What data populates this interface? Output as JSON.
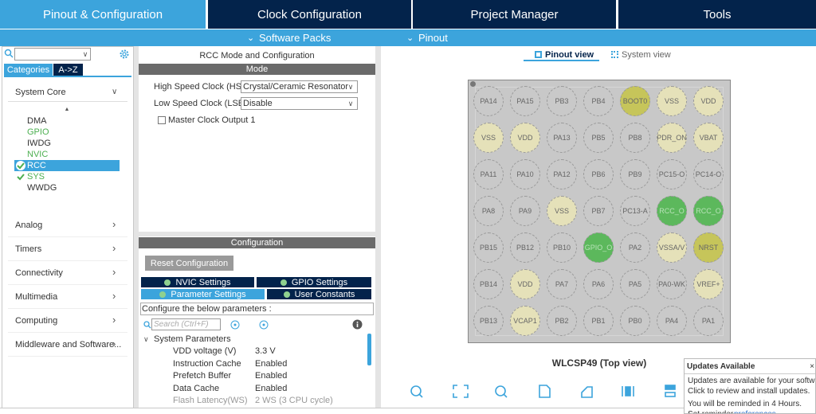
{
  "tabs": [
    "Pinout & Configuration",
    "Clock Configuration",
    "Project Manager",
    "Tools"
  ],
  "subtabs": [
    "Software Packs",
    "Pinout"
  ],
  "sidebar": {
    "tabs": [
      "Categories",
      "A->Z"
    ],
    "group": "System Core",
    "items": [
      {
        "label": "DMA",
        "color": "#333333"
      },
      {
        "label": "GPIO",
        "color": "#4caf50"
      },
      {
        "label": "IWDG",
        "color": "#333333"
      },
      {
        "label": "NVIC",
        "color": "#4caf50"
      },
      {
        "label": "RCC",
        "color": "#ffffff"
      },
      {
        "label": "SYS",
        "color": "#4caf50"
      },
      {
        "label": "WWDG",
        "color": "#333333"
      }
    ],
    "categories": [
      "Analog",
      "Timers",
      "Connectivity",
      "Multimedia",
      "Computing",
      "Middleware and Software..."
    ]
  },
  "mode_panel": {
    "title": "RCC Mode and Configuration",
    "header": "Mode",
    "fields": [
      {
        "label": "High Speed Clock (HSE)",
        "value": "Crystal/Ceramic Resonator"
      },
      {
        "label": "Low Speed Clock (LSE)",
        "value": "Disable"
      }
    ],
    "checkbox": "Master Clock Output 1"
  },
  "config_panel": {
    "header": "Configuration",
    "reset_button": "Reset Configuration",
    "tabs": [
      "NVIC Settings",
      "GPIO Settings",
      "Parameter Settings",
      "User Constants"
    ],
    "hint": "Configure the below parameters :",
    "search_placeholder": "Search (Ctrl+F)",
    "group": "System Parameters",
    "params": [
      {
        "name": "VDD voltage (V)",
        "value": "3.3 V"
      },
      {
        "name": "Instruction Cache",
        "value": "Enabled"
      },
      {
        "name": "Prefetch Buffer",
        "value": "Enabled"
      },
      {
        "name": "Data Cache",
        "value": "Enabled"
      },
      {
        "name": "Flash Latency(WS)",
        "value": "2 WS (3 CPU cycle)"
      }
    ]
  },
  "view": {
    "tabs": [
      "Pinout view",
      "System view"
    ],
    "pins": [
      [
        {
          "label": "PA14",
          "color": "#c9c9c9"
        },
        {
          "label": "PA15",
          "color": "#c9c9c9"
        },
        {
          "label": "PB3",
          "color": "#c9c9c9"
        },
        {
          "label": "PB4",
          "color": "#c9c9c9"
        },
        {
          "label": "BOOT0",
          "color": "#c6c55a"
        },
        {
          "label": "VSS",
          "color": "#e5e1b9"
        },
        {
          "label": "VDD",
          "color": "#e5e1b9"
        }
      ],
      [
        {
          "label": "VSS",
          "color": "#e5e1b9"
        },
        {
          "label": "VDD",
          "color": "#e5e1b9"
        },
        {
          "label": "PA13",
          "color": "#c9c9c9"
        },
        {
          "label": "PB5",
          "color": "#c9c9c9"
        },
        {
          "label": "PB8",
          "color": "#c9c9c9"
        },
        {
          "label": "PDR_ON",
          "color": "#e5e1b9"
        },
        {
          "label": "VBAT",
          "color": "#e5e1b9"
        }
      ],
      [
        {
          "label": "PA11",
          "color": "#c9c9c9"
        },
        {
          "label": "PA10",
          "color": "#c9c9c9"
        },
        {
          "label": "PA12",
          "color": "#c9c9c9"
        },
        {
          "label": "PB6",
          "color": "#c9c9c9"
        },
        {
          "label": "PB9",
          "color": "#c9c9c9"
        },
        {
          "label": "PC15-O",
          "color": "#c9c9c9"
        },
        {
          "label": "PC14-O",
          "color": "#c9c9c9"
        }
      ],
      [
        {
          "label": "PA8",
          "color": "#c9c9c9"
        },
        {
          "label": "PA9",
          "color": "#c9c9c9"
        },
        {
          "label": "VSS",
          "color": "#e5e1b9"
        },
        {
          "label": "PB7",
          "color": "#c9c9c9"
        },
        {
          "label": "PC13-A",
          "color": "#c9c9c9"
        },
        {
          "label": "RCC_O",
          "color": "#5cb85c"
        },
        {
          "label": "RCC_O",
          "color": "#5cb85c"
        }
      ],
      [
        {
          "label": "PB15",
          "color": "#c9c9c9"
        },
        {
          "label": "PB12",
          "color": "#c9c9c9"
        },
        {
          "label": "PB10",
          "color": "#c9c9c9"
        },
        {
          "label": "GPIO_O",
          "color": "#5cb85c"
        },
        {
          "label": "PA2",
          "color": "#c9c9c9"
        },
        {
          "label": "VSSA/V",
          "color": "#e5e1b9"
        },
        {
          "label": "NRST",
          "color": "#c6c55a"
        }
      ],
      [
        {
          "label": "PB14",
          "color": "#c9c9c9"
        },
        {
          "label": "VDD",
          "color": "#e5e1b9"
        },
        {
          "label": "PA7",
          "color": "#c9c9c9"
        },
        {
          "label": "PA6",
          "color": "#c9c9c9"
        },
        {
          "label": "PA5",
          "color": "#c9c9c9"
        },
        {
          "label": "PA0-WK",
          "color": "#c9c9c9"
        },
        {
          "label": "VREF+",
          "color": "#e5e1b9"
        }
      ],
      [
        {
          "label": "PB13",
          "color": "#c9c9c9"
        },
        {
          "label": "VCAP1",
          "color": "#e5e1b9"
        },
        {
          "label": "PB2",
          "color": "#c9c9c9"
        },
        {
          "label": "PB1",
          "color": "#c9c9c9"
        },
        {
          "label": "PB0",
          "color": "#c9c9c9"
        },
        {
          "label": "PA4",
          "color": "#c9c9c9"
        },
        {
          "label": "PA1",
          "color": "#c9c9c9"
        }
      ]
    ],
    "package": "WLCSP49 (Top view)"
  },
  "notification": {
    "title": "Updates Available",
    "lines": [
      "Updates are available for your software",
      "Click to review and install updates.",
      "You will be reminded in 4 Hours."
    ],
    "reminder": "Set reminder",
    "link": "preferences"
  }
}
